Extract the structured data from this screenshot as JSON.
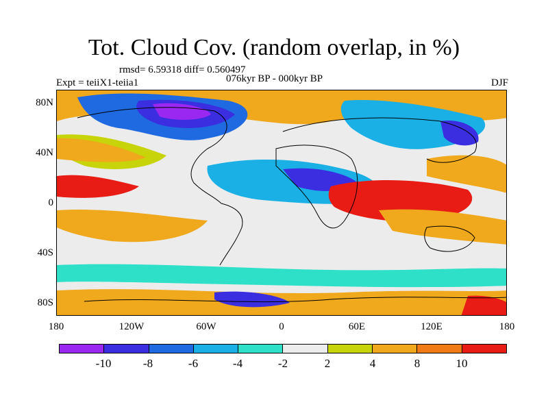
{
  "title": "Tot. Cloud Cov. (random overlap, in %)",
  "stats": "rmsd= 6.59318 diff= 0.560497",
  "experiment": "Expt = teiiX1-teiia1",
  "period": "076kyr BP - 000kyr BP",
  "season": "DJF",
  "y_ticks": [
    "80N",
    "40N",
    "0",
    "40S",
    "80S"
  ],
  "x_ticks": [
    "180",
    "120W",
    "60W",
    "0",
    "60E",
    "120E",
    "180"
  ],
  "colorbar": {
    "colors": [
      "#9a28f0",
      "#3a2ee0",
      "#1f6ae0",
      "#1ab0e6",
      "#2ee0c8",
      "#ececec",
      "#c8d40a",
      "#f0a81c",
      "#f07a14",
      "#e81c14"
    ],
    "labels": [
      "-10",
      "-8",
      "-6",
      "-4",
      "-2",
      "2",
      "4",
      "8",
      "10"
    ]
  },
  "chart_data": {
    "type": "heatmap",
    "title": "Tot. Cloud Cov. (random overlap, in %)",
    "field": "Total cloud cover difference, random overlap (%)",
    "season": "DJF",
    "experiment": "teiiX1-teiia1",
    "period": "076kyr BP - 000kyr BP",
    "rmsd": 6.59318,
    "diff": 0.560497,
    "xlim": [
      -180,
      180
    ],
    "ylim": [
      -90,
      90
    ],
    "levels": [
      -10,
      -8,
      -6,
      -4,
      -2,
      2,
      4,
      8,
      10
    ]
  }
}
